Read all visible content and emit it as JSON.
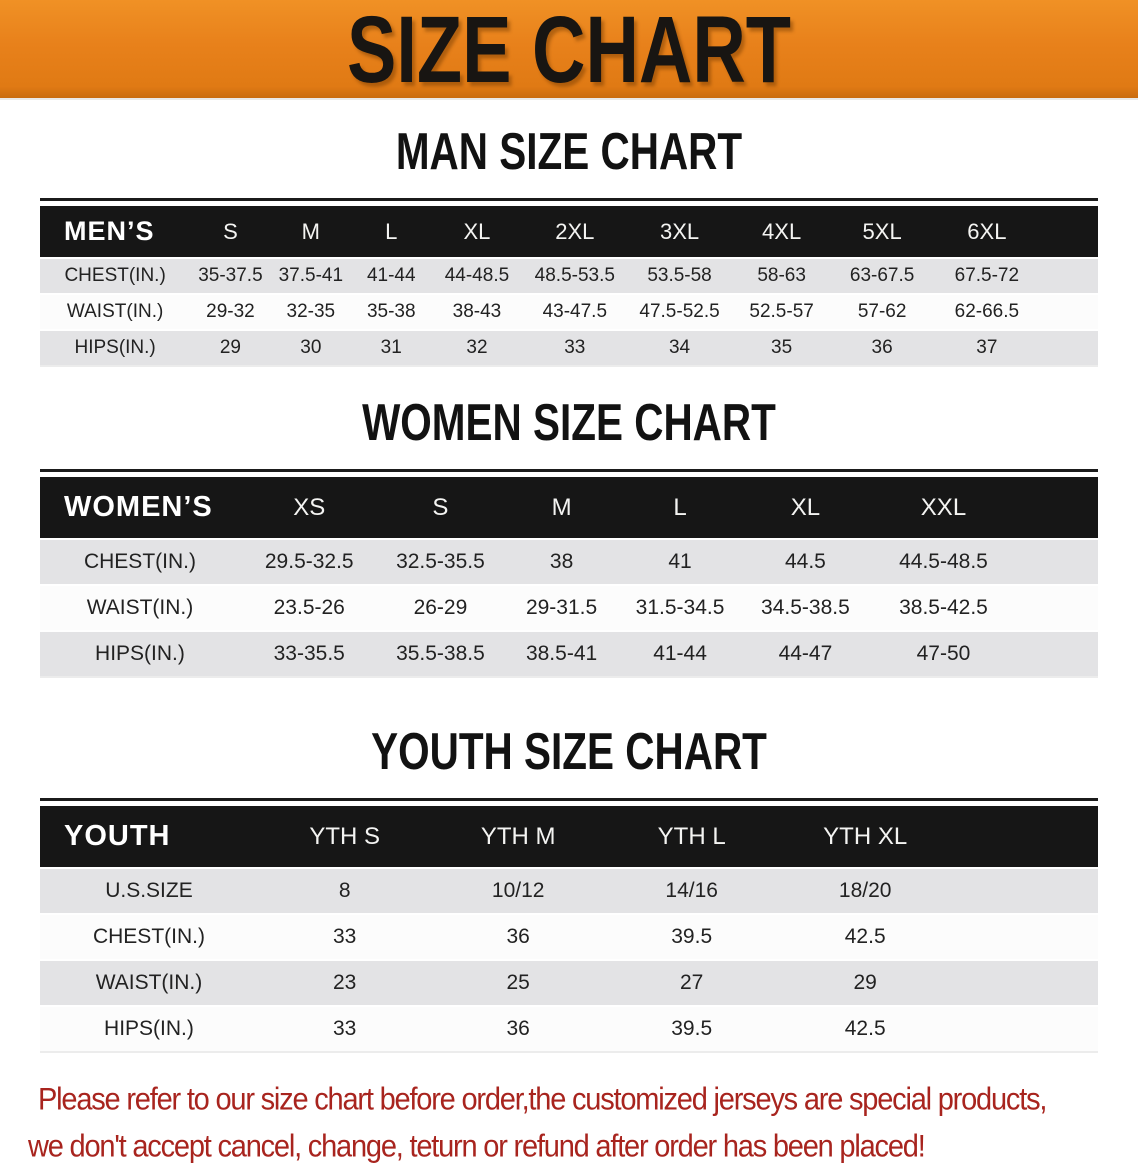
{
  "banner": {
    "title": "SIZE CHART"
  },
  "sections": [
    {
      "heading": "MAN SIZE CHART",
      "table": {
        "header": [
          "MEN’S",
          "S",
          "M",
          "L",
          "XL",
          "2XL",
          "3XL",
          "4XL",
          "5XL",
          "6XL"
        ],
        "rows": [
          {
            "label": "CHEST(IN.)",
            "values": [
              "35-37.5",
              "37.5-41",
              "41-44",
              "44-48.5",
              "48.5-53.5",
              "53.5-58",
              "58-63",
              "63-67.5",
              "67.5-72"
            ]
          },
          {
            "label": "WAIST(IN.)",
            "values": [
              "29-32",
              "32-35",
              "35-38",
              "38-43",
              "43-47.5",
              "47.5-52.5",
              "52.5-57",
              "57-62",
              "62-66.5"
            ]
          },
          {
            "label": "HIPS(IN.)",
            "values": [
              "29",
              "30",
              "31",
              "32",
              "33",
              "34",
              "35",
              "36",
              "37"
            ]
          }
        ]
      }
    },
    {
      "heading": "WOMEN SIZE CHART",
      "table": {
        "header": [
          "WOMEN’S",
          "XS",
          "S",
          "M",
          "L",
          "XL",
          "XXL"
        ],
        "rows": [
          {
            "label": "CHEST(IN.)",
            "values": [
              "29.5-32.5",
              "32.5-35.5",
              "38",
              "41",
              "44.5",
              "44.5-48.5"
            ]
          },
          {
            "label": "WAIST(IN.)",
            "values": [
              "23.5-26",
              "26-29",
              "29-31.5",
              "31.5-34.5",
              "34.5-38.5",
              "38.5-42.5"
            ]
          },
          {
            "label": "HIPS(IN.)",
            "values": [
              "33-35.5",
              "35.5-38.5",
              "38.5-41",
              "41-44",
              "44-47",
              "47-50"
            ]
          }
        ]
      }
    },
    {
      "heading": "YOUTH SIZE CHART",
      "table": {
        "header": [
          "YOUTH",
          "YTH S",
          "YTH M",
          "YTH L",
          "YTH XL"
        ],
        "rows": [
          {
            "label": "U.S.SIZE",
            "values": [
              "8",
              "10/12",
              "14/16",
              "18/20"
            ]
          },
          {
            "label": "CHEST(IN.)",
            "values": [
              "33",
              "36",
              "39.5",
              "42.5"
            ]
          },
          {
            "label": "WAIST(IN.)",
            "values": [
              "23",
              "25",
              "27",
              "29"
            ]
          },
          {
            "label": "HIPS(IN.)",
            "values": [
              "33",
              "36",
              "39.5",
              "42.5"
            ]
          }
        ]
      }
    }
  ],
  "footer": {
    "line1": "Please refer to our size chart before order,the customized jerseys are special products,",
    "line2": "we don't accept cancel, change, teturn or refund after order has been placed!"
  },
  "colors": {
    "banner_orange": "#e8811b",
    "header_black": "#161616",
    "row_gray": "#e3e3e5",
    "row_white": "#fcfcfc",
    "heading_black": "#121212",
    "footer_red": "#a8241e"
  }
}
